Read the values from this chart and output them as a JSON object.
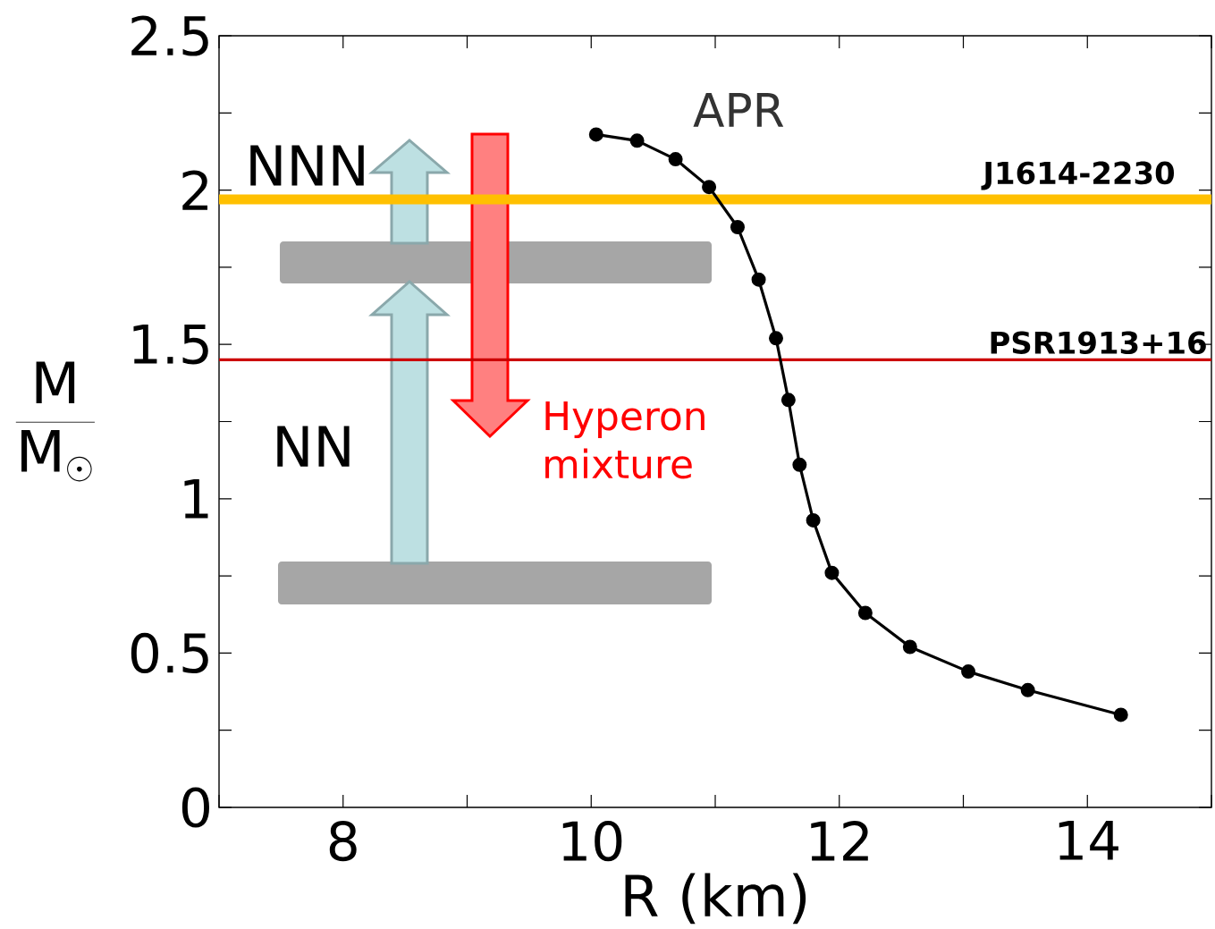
{
  "chart_data": {
    "type": "line",
    "xlabel": "R (km)",
    "ylabel": "\\frac{\\mathrm{M}}{\\mathrm{M}_{\\odot}}",
    "xlim": [
      7,
      15
    ],
    "ylim": [
      0,
      2.5
    ],
    "xticks": [
      {
        "value": 7,
        "label": null
      },
      8,
      {
        "value": 9,
        "label": null
      },
      10,
      {
        "value": 11,
        "label": null
      },
      12,
      {
        "value": 13,
        "label": null
      },
      14,
      {
        "value": 15,
        "label": null
      }
    ],
    "yticks": [
      0,
      {
        "value": 0.25,
        "label": null
      },
      0.5,
      {
        "value": 0.75,
        "label": null
      },
      1,
      {
        "value": 1.25,
        "label": null
      },
      1.5,
      {
        "value": 1.75,
        "label": null
      },
      2,
      {
        "value": 2.25,
        "label": null
      },
      2.5
    ],
    "x": [
      10.04,
      10.37,
      10.68,
      10.95,
      11.18,
      11.35,
      11.49,
      11.59,
      11.68,
      11.79,
      11.94,
      12.21,
      12.57,
      13.04,
      13.52,
      14.27
    ],
    "series": [
      {
        "name": "APR",
        "color": "#000000",
        "values": [
          2.18,
          2.16,
          2.1,
          2.01,
          1.88,
          1.71,
          1.52,
          1.32,
          1.11,
          0.93,
          0.76,
          0.63,
          0.52,
          0.44,
          0.38,
          0.3
        ]
      }
    ],
    "marker": "circle",
    "line_style": "solid",
    "grid": false,
    "ref_lines": [
      {
        "axis": "y",
        "value": 1.97,
        "label": "J1614-2230",
        "color": "#ffc000",
        "line_style": "solid"
      },
      {
        "axis": "y",
        "value": 1.45,
        "label": "PSR1913+16",
        "color": "#cc0000",
        "line_style": "solid"
      }
    ],
    "annotations": [
      "NNN",
      "NN",
      "Hyperon mixture"
    ]
  }
}
